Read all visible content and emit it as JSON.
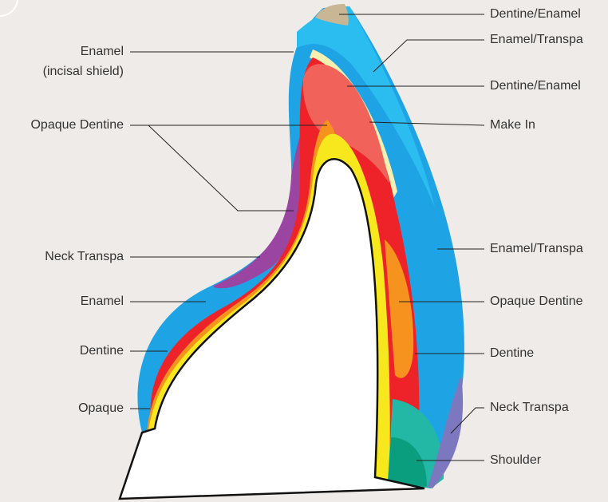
{
  "left_labels": [
    [
      "Enamel",
      "(incisal shield)"
    ],
    [
      "Opaque Dentine"
    ],
    [
      "Neck Transpa"
    ],
    [
      "Enamel"
    ],
    [
      "Dentine"
    ],
    [
      "Opaque"
    ]
  ],
  "right_labels": [
    "Dentine/Enamel",
    "Enamel/Transpa",
    "Dentine/Enamel",
    "Make In",
    "Enamel/Transpa",
    "Opaque Dentine",
    "Dentine",
    "Neck Transpa",
    "Shoulder"
  ]
}
